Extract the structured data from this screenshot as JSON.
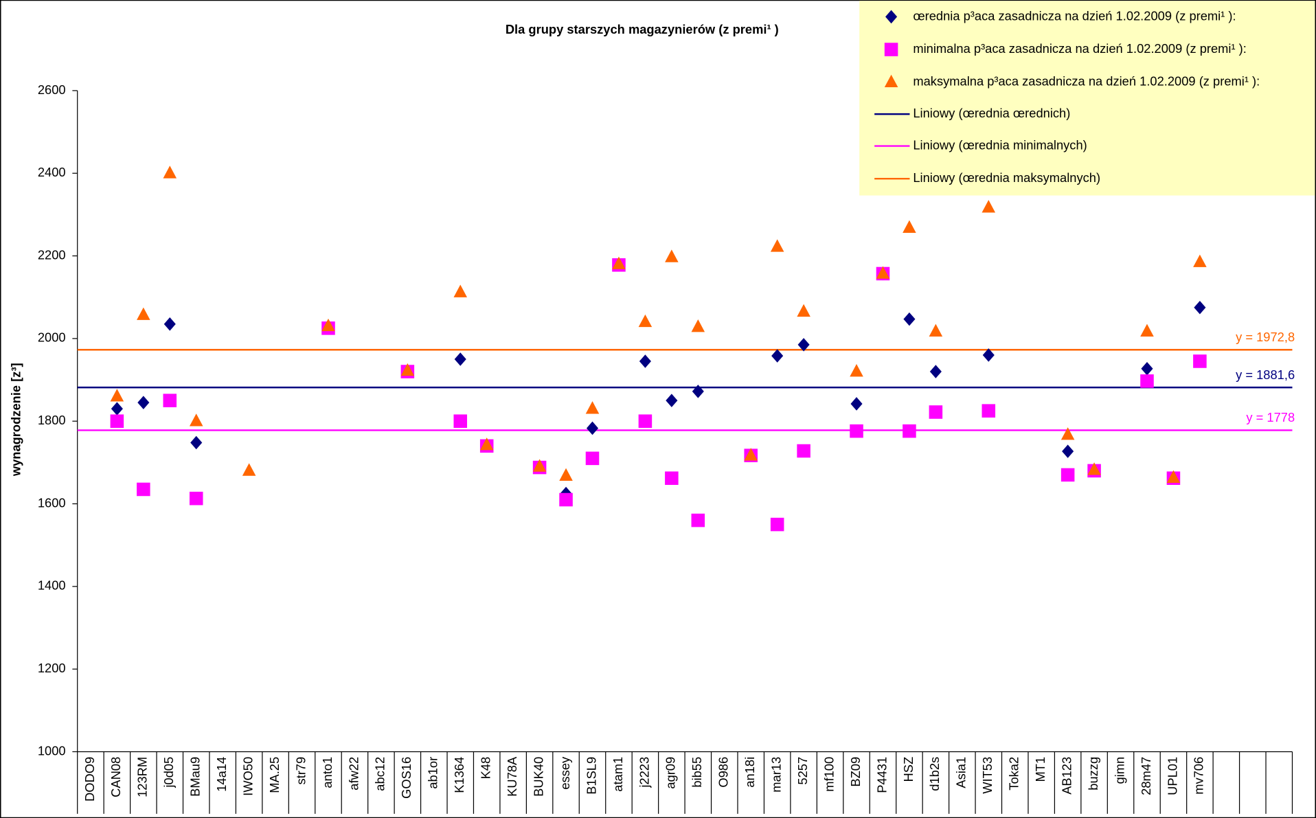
{
  "chart_data": {
    "type": "scatter",
    "title": "Dla grupy starszych magazynierów (z premi¹ )",
    "ylabel": "wynagrodzenie [z³]",
    "categories": [
      "DODO9",
      "CAN08",
      "123RM",
      "j0d05",
      "BMau9",
      "14a14",
      "IWO50",
      "MA.25",
      "str79",
      "anto1",
      "afw22",
      "abc12",
      "GOS16",
      "ab1or",
      "K1364",
      "K48",
      "KU78A",
      "BUK40",
      "essey",
      "B1SL9",
      "atam1",
      "j2223",
      "agr09",
      "bib55",
      "O986",
      "an18i",
      "mar13",
      "5257",
      "mf100",
      "BZ09",
      "P4431",
      "HSZ",
      "d1b2s",
      "Asia1",
      "WIT53",
      "Toka2",
      "MT1",
      "AB123",
      "buzzg",
      "gimn",
      "28m47",
      "UPL01",
      "mv706",
      null,
      null,
      null
    ],
    "series": [
      {
        "name": "œrednia p³aca zasadnicza na dzień 1.02.2009 (z premi¹ ):",
        "color": "#000080",
        "marker": "diamond",
        "values": [
          null,
          1830,
          1845,
          2035,
          1748,
          null,
          null,
          null,
          null,
          2025,
          null,
          null,
          1920,
          null,
          1950,
          1740,
          null,
          1690,
          1625,
          1783,
          2178,
          1945,
          1850,
          1872,
          null,
          1717,
          1958,
          1985,
          null,
          1842,
          2157,
          2047,
          1920,
          null,
          1960,
          null,
          null,
          1727,
          1680,
          null,
          1927,
          1662,
          2075,
          null,
          null,
          null
        ]
      },
      {
        "name": "minimalna p³aca zasadnicza na dzień 1.02.2009 (z premi¹ ):",
        "color": "#ff00ff",
        "marker": "square",
        "values": [
          null,
          1800,
          1635,
          1850,
          1613,
          null,
          null,
          null,
          null,
          2025,
          null,
          null,
          1920,
          null,
          1800,
          1740,
          null,
          1688,
          1610,
          1710,
          2178,
          1800,
          1662,
          1560,
          null,
          1717,
          1550,
          1728,
          null,
          1776,
          2157,
          1776,
          1822,
          null,
          1825,
          null,
          null,
          1670,
          1680,
          null,
          1897,
          1662,
          1945,
          null,
          null,
          null
        ]
      },
      {
        "name": "maksymalna p³aca zasadnicza na dzień 1.02.2009 (z premi¹ ):",
        "color": "#ff6600",
        "marker": "triangle",
        "values": [
          null,
          1860,
          2057,
          2400,
          1800,
          null,
          1680,
          null,
          null,
          2030,
          null,
          null,
          1922,
          null,
          2112,
          1742,
          null,
          1690,
          1668,
          1830,
          2180,
          2040,
          2197,
          2028,
          null,
          1717,
          2222,
          2065,
          null,
          1920,
          2157,
          2268,
          2017,
          null,
          2317,
          null,
          null,
          1767,
          1682,
          null,
          2017,
          1663,
          2185,
          null,
          null,
          null
        ]
      }
    ],
    "trendlines": [
      {
        "name": "Liniowy (œrednia œrednich)",
        "color": "#000080",
        "value": 1881.6,
        "value_label": "y = 1881,6"
      },
      {
        "name": "Liniowy (œrednia minimalnych)",
        "color": "#ff00ff",
        "value": 1778,
        "value_label": "y = 1778"
      },
      {
        "name": "Liniowy (œrednia maksymalnych)",
        "color": "#ff6600",
        "value": 1972.8,
        "value_label": "y = 1972,8"
      }
    ],
    "ylim": [
      1000,
      2600
    ],
    "yticks": [
      1000,
      1200,
      1400,
      1600,
      1800,
      2000,
      2200,
      2400,
      2600
    ],
    "grid": false,
    "legend": "top-right"
  }
}
